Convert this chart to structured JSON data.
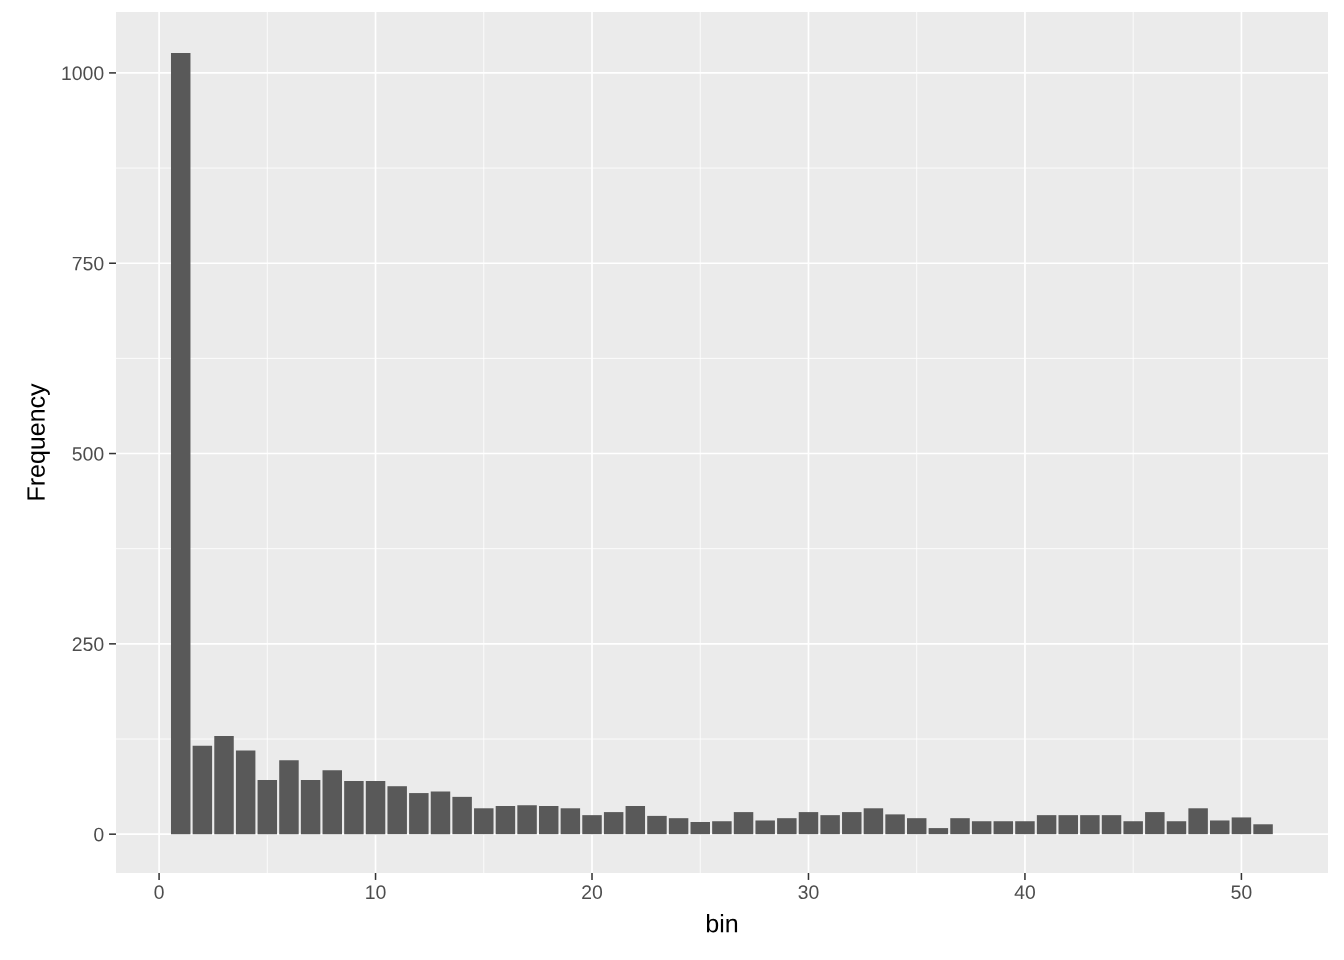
{
  "chart_data": {
    "type": "bar",
    "xlabel": "bin",
    "ylabel": "Frequency",
    "x": [
      1,
      2,
      3,
      4,
      5,
      6,
      7,
      8,
      9,
      10,
      11,
      12,
      13,
      14,
      15,
      16,
      17,
      18,
      19,
      20,
      21,
      22,
      23,
      24,
      25,
      26,
      27,
      28,
      29,
      30,
      31,
      32,
      33,
      34,
      35,
      36,
      37,
      38,
      39,
      40,
      41,
      42,
      43,
      44,
      45,
      46,
      47,
      48,
      49,
      50,
      51
    ],
    "values": [
      1026,
      116,
      129,
      110,
      71,
      97,
      71,
      84,
      70,
      70,
      63,
      54,
      56,
      49,
      34,
      37,
      38,
      37,
      34,
      25,
      29,
      37,
      24,
      21,
      16,
      17,
      29,
      18,
      21,
      29,
      25,
      29,
      34,
      26,
      21,
      8,
      21,
      17,
      17,
      17,
      25,
      25,
      25,
      25,
      17,
      29,
      17,
      34,
      18,
      22,
      13
    ],
    "color": "#595959",
    "xlim": [
      -1.99,
      54.0
    ],
    "xticks": [
      0,
      10,
      20,
      30,
      40,
      50
    ],
    "ylim": [
      -51,
      1080
    ],
    "yticks": [
      0,
      250,
      500,
      750,
      1000
    ],
    "grid": true,
    "legend": false
  }
}
